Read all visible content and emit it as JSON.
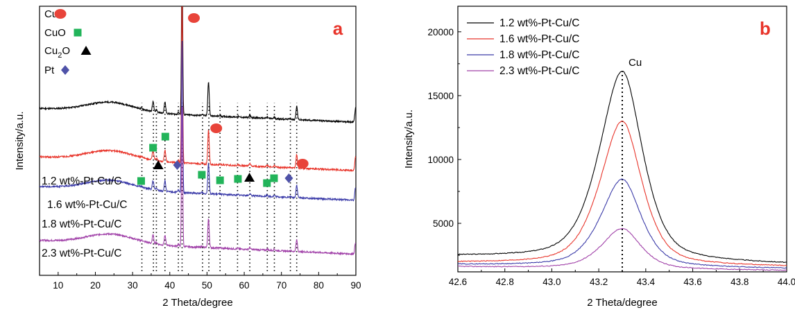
{
  "chart_data": [
    {
      "panel_label": "a",
      "type": "line",
      "xlabel": "2 Theta/degree",
      "ylabel": "Intensity/a.u.",
      "xlim": [
        5,
        90
      ],
      "x_ticks": [
        10,
        20,
        30,
        40,
        50,
        60,
        70,
        80,
        90
      ],
      "y_ticks": [],
      "legend": {
        "position": "top-left",
        "entries": [
          {
            "label": "Cu",
            "marker": "circle",
            "color": "#e8443a"
          },
          {
            "label": "CuO",
            "marker": "square",
            "color": "#22b45a"
          },
          {
            "label": "Cu2O",
            "marker": "triangle",
            "color": "#000000"
          },
          {
            "label": "Pt",
            "marker": "diamond",
            "color": "#4f52a8"
          }
        ]
      },
      "series": [
        {
          "name": "1.2 wt%-Pt-Cu/C",
          "color": "#000000",
          "baseline": 0.62
        },
        {
          "name": "1.6 wt%-Pt-Cu/C",
          "color": "#e8342a",
          "baseline": 0.44
        },
        {
          "name": "1.8 wt%-Pt-Cu/C",
          "color": "#3a3aa8",
          "baseline": 0.33
        },
        {
          "name": "2.3 wt%-Pt-Cu/C",
          "color": "#a040a8",
          "baseline": 0.13
        }
      ],
      "peaks": [
        {
          "x": 32.5,
          "h": 0.01
        },
        {
          "x": 35.5,
          "h": 0.13
        },
        {
          "x": 36.4,
          "h": 0.03
        },
        {
          "x": 38.7,
          "h": 0.15
        },
        {
          "x": 42.3,
          "h": 0.03
        },
        {
          "x": 43.3,
          "h": 2.2
        },
        {
          "x": 48.7,
          "h": 0.02
        },
        {
          "x": 50.4,
          "h": 0.45
        },
        {
          "x": 53.5,
          "h": 0.01
        },
        {
          "x": 58.3,
          "h": 0.01
        },
        {
          "x": 61.5,
          "h": 0.03
        },
        {
          "x": 66.2,
          "h": 0.02
        },
        {
          "x": 68.1,
          "h": 0.02
        },
        {
          "x": 72.4,
          "h": 0.01
        },
        {
          "x": 74.1,
          "h": 0.18
        },
        {
          "x": 89.9,
          "h": 0.18
        }
      ],
      "phase_markers": [
        {
          "phase": "CuO",
          "x": 32.3
        },
        {
          "phase": "CuO",
          "x": 35.5
        },
        {
          "phase": "Cu2O",
          "x": 36.9
        },
        {
          "phase": "CuO",
          "x": 38.8
        },
        {
          "phase": "Pt",
          "x": 42.0
        },
        {
          "phase": "Cu",
          "x": 44.8
        },
        {
          "phase": "CuO",
          "x": 48.6
        },
        {
          "phase": "Cu",
          "x": 50.8
        },
        {
          "phase": "CuO",
          "x": 53.5
        },
        {
          "phase": "CuO",
          "x": 58.3
        },
        {
          "phase": "Cu2O",
          "x": 61.4
        },
        {
          "phase": "CuO",
          "x": 66.1
        },
        {
          "phase": "CuO",
          "x": 68.0
        },
        {
          "phase": "Pt",
          "x": 72.0
        },
        {
          "phase": "Cu",
          "x": 74.0
        }
      ]
    },
    {
      "panel_label": "b",
      "type": "line",
      "xlabel": "2 Theta/degree",
      "ylabel": "Intensity/a.u.",
      "xlim": [
        42.6,
        44.0
      ],
      "ylim": [
        1200,
        22000
      ],
      "x_ticks": [
        42.6,
        42.8,
        43.0,
        43.2,
        43.4,
        43.6,
        43.8,
        44.0
      ],
      "y_ticks": [
        5000,
        10000,
        15000,
        20000
      ],
      "legend_position": "top-left",
      "annotation": {
        "text": "Cu",
        "x": 43.3
      },
      "series": [
        {
          "name": "1.2 wt%-Pt-Cu/C",
          "color": "#000000",
          "peak": 16900,
          "background": [
            2400,
            1800
          ],
          "width": 0.145
        },
        {
          "name": "1.6 wt%-Pt-Cu/C",
          "color": "#e8342a",
          "peak": 13000,
          "background": [
            1900,
            1600
          ],
          "width": 0.14
        },
        {
          "name": "1.8 wt%-Pt-Cu/C",
          "color": "#3a3aa8",
          "peak": 8450,
          "background": [
            1750,
            1450
          ],
          "width": 0.135
        },
        {
          "name": "2.3 wt%-Pt-Cu/C",
          "color": "#a040a8",
          "peak": 4600,
          "background": [
            1600,
            1300
          ],
          "width": 0.13
        }
      ]
    }
  ]
}
